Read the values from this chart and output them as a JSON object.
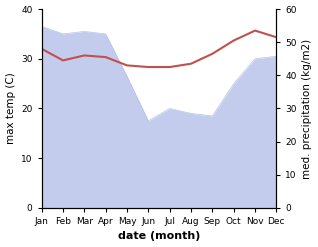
{
  "months": [
    "Jan",
    "Feb",
    "Mar",
    "Apr",
    "May",
    "Jun",
    "Jul",
    "Aug",
    "Sep",
    "Oct",
    "Nov",
    "Dec"
  ],
  "max_temp": [
    36.5,
    35.0,
    35.5,
    35.0,
    26.5,
    17.5,
    20.0,
    19.0,
    18.5,
    25.0,
    30.0,
    30.5
  ],
  "med_precip": [
    48,
    44.5,
    46,
    45.5,
    43,
    42.5,
    42.5,
    43.5,
    46.5,
    50.5,
    53.5,
    51.5
  ],
  "temp_ylim": [
    0,
    40
  ],
  "precip_ylim": [
    0,
    60
  ],
  "fill_color": "#b0bce8",
  "fill_alpha": 0.75,
  "line_color": "#c0504d",
  "line_width": 1.5,
  "xlabel": "date (month)",
  "ylabel_left": "max temp (C)",
  "ylabel_right": "med. precipitation (kg/m2)",
  "bg_color": "#ffffff",
  "tick_fontsize": 6.5,
  "label_fontsize": 7.5,
  "xlabel_fontsize": 8
}
